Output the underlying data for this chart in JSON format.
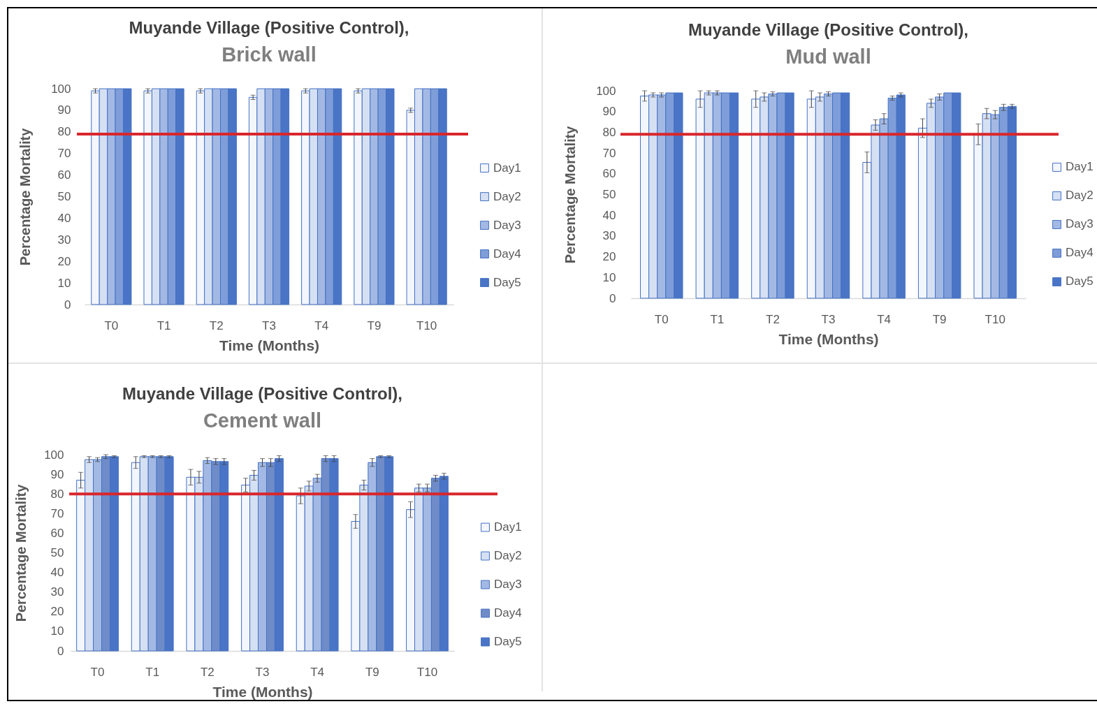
{
  "chart_data": [
    {
      "type": "bar",
      "title": "Muyande Village (Positive Control),",
      "subtitle": "Brick wall",
      "xlabel": "Time (Months)",
      "ylabel": "Percentage Mortality",
      "categories": [
        "T0",
        "T1",
        "T2",
        "T3",
        "T4",
        "T9",
        "T10"
      ],
      "ylim": [
        0,
        100
      ],
      "yticks": [
        0,
        10,
        20,
        30,
        40,
        50,
        60,
        70,
        80,
        90,
        100
      ],
      "legend": "right",
      "ref_lines": [
        {
          "axis": "y",
          "value": 79,
          "color": "#d9262b"
        }
      ],
      "series": [
        {
          "name": "Day1",
          "color": "#f3f6fc",
          "values": [
            99,
            99,
            99,
            96,
            99,
            99,
            90
          ],
          "errors": [
            1,
            1,
            1,
            1,
            1,
            1,
            1
          ]
        },
        {
          "name": "Day2",
          "color": "#d6e0f3",
          "values": [
            100,
            100,
            100,
            100,
            100,
            100,
            100
          ]
        },
        {
          "name": "Day3",
          "color": "#a3b9e4",
          "values": [
            100,
            100,
            100,
            100,
            100,
            100,
            100
          ]
        },
        {
          "name": "Day4",
          "color": "#7f9dd8",
          "values": [
            100,
            100,
            100,
            100,
            100,
            100,
            100
          ]
        },
        {
          "name": "Day5",
          "color": "#4a74c6",
          "values": [
            100,
            100,
            100,
            100,
            100,
            100,
            100
          ]
        }
      ]
    },
    {
      "type": "bar",
      "title": "Muyande Village (Positive Control),",
      "subtitle": "Mud wall",
      "xlabel": "Time (Months)",
      "ylabel": "Percentage Mortality",
      "categories": [
        "T0",
        "T1",
        "T2",
        "T3",
        "T4",
        "T9",
        "T10"
      ],
      "ylim": [
        0,
        100
      ],
      "yticks": [
        0,
        10,
        20,
        30,
        40,
        50,
        60,
        70,
        80,
        90,
        100
      ],
      "legend": "right",
      "ref_lines": [
        {
          "axis": "y",
          "value": 79,
          "color": "#d9262b"
        }
      ],
      "series": [
        {
          "name": "Day1",
          "color": "#f3f6fc",
          "values": [
            97.5,
            96,
            96,
            96,
            65.5,
            82,
            79
          ],
          "errors": [
            2.5,
            4,
            4,
            4,
            5,
            4.5,
            5
          ]
        },
        {
          "name": "Day2",
          "color": "#d6e0f3",
          "values": [
            98,
            99,
            97,
            97,
            83.5,
            94,
            89
          ],
          "errors": [
            1,
            1,
            2,
            2,
            2.5,
            2,
            2.5
          ]
        },
        {
          "name": "Day3",
          "color": "#a3b9e4",
          "values": [
            98,
            99,
            98.5,
            98.5,
            86.5,
            97,
            88.5
          ],
          "errors": [
            1,
            1,
            1,
            1,
            2.5,
            1.5,
            2
          ]
        },
        {
          "name": "Day4",
          "color": "#7f9dd8",
          "values": [
            99,
            99,
            99,
            99,
            96.5,
            99,
            92
          ],
          "errors": [
            null,
            null,
            null,
            null,
            1,
            null,
            1.5
          ]
        },
        {
          "name": "Day5",
          "color": "#4a74c6",
          "values": [
            99,
            99,
            99,
            99,
            98,
            99,
            92.5
          ],
          "errors": [
            null,
            null,
            null,
            null,
            1,
            null,
            1
          ]
        }
      ]
    },
    {
      "type": "bar",
      "title": "Muyande Village (Positive Control),",
      "subtitle": "Cement wall",
      "xlabel": "Time (Months)",
      "ylabel": "Percentage Mortality",
      "categories": [
        "T0",
        "T1",
        "T2",
        "T3",
        "T4",
        "T9",
        "T10"
      ],
      "ylim": [
        0,
        100
      ],
      "yticks": [
        0,
        10,
        20,
        30,
        40,
        50,
        60,
        70,
        80,
        90,
        100
      ],
      "legend": "right",
      "ref_lines": [
        {
          "axis": "y",
          "value": 80,
          "color": "#d9262b"
        }
      ],
      "series": [
        {
          "name": "Day1",
          "color": "#f3f6fc",
          "values": [
            87,
            96,
            88.5,
            84.5,
            79,
            66,
            72
          ],
          "errors": [
            4,
            3,
            4,
            3.5,
            4,
            3.5,
            4
          ]
        },
        {
          "name": "Day2",
          "color": "#d6e0f3",
          "values": [
            97.5,
            99,
            88.5,
            89.5,
            84,
            84.5,
            83
          ],
          "errors": [
            1.5,
            0.5,
            3,
            2.5,
            2.5,
            2.5,
            2
          ]
        },
        {
          "name": "Day3",
          "color": "#a3b9e4",
          "values": [
            97.5,
            99,
            97,
            96,
            88,
            96,
            83
          ],
          "errors": [
            1,
            0.5,
            1.5,
            2,
            2,
            2,
            2
          ]
        },
        {
          "name": "Day4",
          "color": "#6f8cc9",
          "values": [
            99,
            99,
            96.5,
            96,
            98,
            99,
            88
          ],
          "errors": [
            1,
            0.5,
            1.5,
            2,
            1.5,
            0.5,
            1.5
          ]
        },
        {
          "name": "Day5",
          "color": "#4a74c6",
          "values": [
            99,
            99,
            96.5,
            98,
            98,
            99,
            89
          ],
          "errors": [
            0.5,
            0.5,
            1.5,
            1.5,
            1.5,
            0.5,
            1.5
          ]
        }
      ]
    }
  ]
}
